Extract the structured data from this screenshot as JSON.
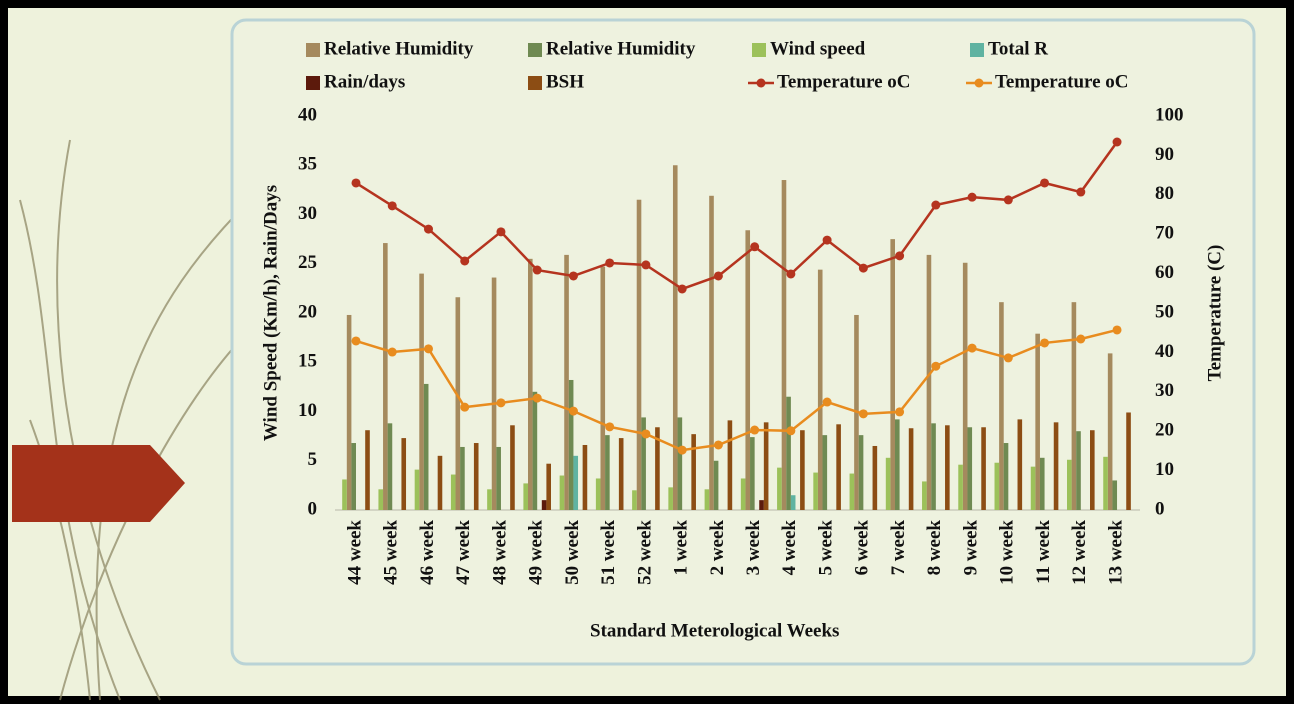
{
  "chart_data": {
    "type": "bar-line",
    "x_label": "Standard Meterological Weeks",
    "y_label": "Wind Speed (Km/h), Rain/Days",
    "y2_label": "Temperature (C)",
    "categories": [
      "44 week",
      "45 week",
      "46 week",
      "47 week",
      "48 week",
      "49 week",
      "50 week",
      "51 week",
      "52 week",
      "1 week",
      "2 week",
      "3 week",
      "4 week",
      "5 week",
      "6 week",
      "7 week",
      "8 week",
      "9 week",
      "10 week",
      "11 week",
      "12 week",
      "13 week"
    ],
    "ylim": [
      0,
      40
    ],
    "yticks": [
      0,
      5,
      10,
      15,
      20,
      25,
      30,
      35,
      40
    ],
    "y2lim": [
      0,
      100
    ],
    "y2ticks": [
      0,
      10,
      20,
      30,
      40,
      50,
      60,
      70,
      80,
      90,
      100
    ],
    "series": [
      {
        "name": "Relative Humidity",
        "type": "bar",
        "color": "#a58a5e",
        "values": [
          19.8,
          27.1,
          24,
          21.6,
          23.6,
          25.5,
          25.9,
          24.7,
          31.5,
          35,
          31.9,
          28.4,
          33.5,
          24.4,
          19.8,
          27.5,
          25.9,
          25.1,
          21.1,
          17.9,
          21.1,
          15.9
        ]
      },
      {
        "name": "Relative Humidity",
        "type": "bar",
        "color": "#6f8a52",
        "values": [
          6.8,
          8.8,
          12.8,
          6.4,
          6.4,
          12,
          13.2,
          7.6,
          9.4,
          9.4,
          5,
          7.4,
          11.5,
          7.6,
          7.6,
          9.2,
          8.8,
          8.4,
          6.8,
          5.3,
          8,
          3
        ]
      },
      {
        "name": "Wind speed",
        "type": "bar",
        "color": "#9cc15a",
        "values": [
          3.1,
          2.1,
          4.1,
          3.6,
          2.1,
          2.7,
          3.5,
          3.2,
          2,
          2.3,
          2.1,
          3.2,
          4.3,
          3.8,
          3.7,
          5.3,
          2.9,
          4.6,
          4.8,
          4.4,
          5.1,
          5.4
        ]
      },
      {
        "name": "Total R",
        "type": "bar",
        "color": "#5fb3a1",
        "values": [
          0,
          0,
          0,
          0,
          0,
          0,
          5.5,
          0,
          0,
          0,
          0,
          0,
          1.5,
          0,
          0,
          0,
          0,
          0,
          0,
          0,
          0,
          0
        ]
      },
      {
        "name": "Rain/days",
        "type": "bar",
        "color": "#5c1a0c",
        "values": [
          0,
          0,
          0,
          0,
          0,
          1,
          0,
          0,
          0,
          0,
          0,
          1,
          0,
          0,
          0,
          0,
          0,
          0,
          0,
          0,
          0,
          0
        ]
      },
      {
        "name": "BSH",
        "type": "bar",
        "color": "#8c4d14",
        "values": [
          8.1,
          7.3,
          5.5,
          6.8,
          8.6,
          4.7,
          6.6,
          7.3,
          8.4,
          7.7,
          9.1,
          8.9,
          8.1,
          8.7,
          6.5,
          8.3,
          8.6,
          8.4,
          9.2,
          8.9,
          8.1,
          9.9
        ]
      },
      {
        "name": "Temperature oC",
        "type": "line",
        "axis": "y2",
        "color": "#b5341f",
        "values": [
          83,
          77.2,
          71.3,
          63.2,
          70.6,
          60.9,
          59.4,
          62.7,
          62.2,
          56.1,
          59.4,
          66.8,
          59.9,
          68.5,
          61.4,
          64.5,
          77.4,
          79.4,
          78.7,
          83,
          80.7,
          93.4
        ]
      },
      {
        "name": "Temperature oC",
        "type": "line",
        "axis": "y2",
        "color": "#e88c1f",
        "values": [
          42.9,
          40.1,
          40.9,
          26.1,
          27.2,
          28.4,
          25.1,
          21.1,
          19.3,
          15.2,
          16.5,
          20.3,
          20.1,
          27.4,
          24.4,
          24.9,
          36.5,
          41.1,
          38.6,
          42.4,
          43.4,
          45.7
        ]
      }
    ]
  }
}
